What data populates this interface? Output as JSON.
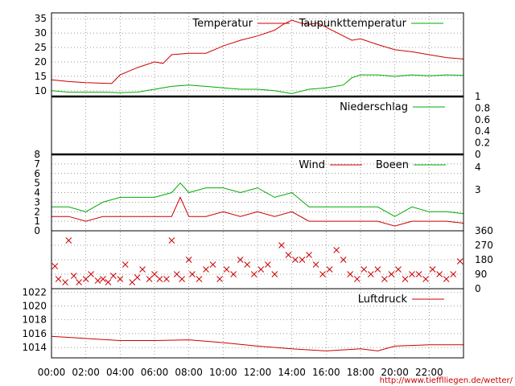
{
  "footer_url": "http://www.tiefflliegen.de/wetter/",
  "x_ticks": [
    "00:00",
    "02:00",
    "04:00",
    "06:00",
    "08:00",
    "10:00",
    "12:00",
    "14:00",
    "16:00",
    "18:00",
    "20:00",
    "22:00"
  ],
  "colors": {
    "red": "#cc0000",
    "green": "#00aa00",
    "grid": "#777777"
  },
  "chart_data": [
    {
      "type": "line",
      "panel": "temperature",
      "ylim": [
        8,
        37
      ],
      "yticks": [
        "10",
        "15",
        "20",
        "25",
        "30",
        "35"
      ],
      "grid": true,
      "x_unit": "hour",
      "series": [
        {
          "name": "Temperatur",
          "color": "#cc0000",
          "x": [
            0,
            1,
            2,
            3,
            3.5,
            4,
            5,
            6,
            6.5,
            7,
            8,
            9,
            10,
            11,
            12,
            13,
            13.5,
            14,
            14.5,
            15,
            15.5,
            16,
            17,
            17.5,
            18,
            19,
            20,
            21,
            22,
            23,
            24
          ],
          "y": [
            13.8,
            13.2,
            12.8,
            12.6,
            12.5,
            15.5,
            18,
            20,
            19.5,
            22.5,
            23,
            23,
            25.5,
            27.5,
            29,
            31,
            33,
            34.5,
            33.5,
            33,
            33.5,
            32,
            29,
            27.5,
            28,
            26,
            24.2,
            23.5,
            22.5,
            21.5,
            21
          ]
        },
        {
          "name": "Taupunkttemperatur",
          "color": "#00aa00",
          "x": [
            0,
            1,
            2,
            3,
            4,
            5,
            6,
            7,
            8,
            9,
            10,
            11,
            12,
            13,
            13.5,
            14,
            15,
            16,
            17,
            17.5,
            18,
            19,
            20,
            21,
            22,
            23,
            24
          ],
          "y": [
            10,
            9.5,
            9.5,
            9.5,
            9.3,
            9.5,
            10.5,
            11.5,
            12,
            11.5,
            11,
            10.5,
            10.5,
            10,
            9.5,
            9,
            10.5,
            11,
            12,
            14.5,
            15.5,
            15.5,
            15,
            15.5,
            15.2,
            15.5,
            15.3
          ]
        }
      ]
    },
    {
      "type": "line",
      "panel": "precipitation",
      "ylim": [
        0,
        1
      ],
      "yticks_right": [
        "0",
        "0.2",
        "0.4",
        "0.6",
        "0.8",
        "1"
      ],
      "series": [
        {
          "name": "Niederschlag",
          "color": "#00aa00",
          "x": [
            0,
            24
          ],
          "y": [
            0,
            0
          ]
        }
      ]
    },
    {
      "type": "line",
      "panel": "wind",
      "ylim": [
        0,
        8
      ],
      "yticks": [
        "0",
        "1",
        "2",
        "3",
        "4",
        "5",
        "6",
        "7",
        "8"
      ],
      "yticks_right": [
        "3",
        "4"
      ],
      "grid": true,
      "series": [
        {
          "name": "Wind",
          "color": "#cc0000",
          "x": [
            0,
            1,
            2,
            3,
            4,
            5,
            6,
            7,
            7.5,
            8,
            9,
            10,
            11,
            12,
            13,
            14,
            15,
            16,
            17,
            18,
            19,
            20,
            21,
            22,
            23,
            24
          ],
          "y": [
            1.5,
            1.5,
            1,
            1.5,
            1.5,
            1.5,
            1.5,
            1.5,
            3.5,
            1.5,
            1.5,
            2,
            1.5,
            2,
            1.5,
            2,
            1,
            1,
            1,
            1,
            1,
            0.5,
            1,
            1,
            1,
            0.8
          ]
        },
        {
          "name": "Boeen",
          "color": "#00aa00",
          "x": [
            0,
            1,
            2,
            3,
            4,
            5,
            6,
            7,
            7.5,
            8,
            9,
            10,
            11,
            12,
            13,
            14,
            15,
            16,
            17,
            18,
            19,
            20,
            21,
            22,
            23,
            24
          ],
          "y": [
            2.5,
            2.5,
            2,
            3,
            3.5,
            3.5,
            3.5,
            4,
            5,
            4,
            4.5,
            4.5,
            4,
            4.5,
            3.5,
            4,
            2.5,
            2.5,
            2.5,
            2.5,
            2.5,
            1.5,
            2.5,
            2,
            2,
            1.8
          ]
        }
      ]
    },
    {
      "type": "scatter",
      "panel": "wind_direction",
      "ylim": [
        0,
        360
      ],
      "yticks_right": [
        "0",
        "90",
        "180",
        "270",
        "360"
      ],
      "marker": "x",
      "color": "#cc0000",
      "x": [
        0.2,
        0.4,
        0.8,
        1,
        1.3,
        1.6,
        2,
        2.3,
        2.7,
        3,
        3.3,
        3.6,
        4,
        4.3,
        4.7,
        5,
        5.3,
        5.7,
        6,
        6.3,
        6.7,
        7,
        7.3,
        7.6,
        8,
        8.2,
        8.6,
        9,
        9.4,
        9.8,
        10.2,
        10.6,
        11,
        11.4,
        11.8,
        12.2,
        12.6,
        13,
        13.4,
        13.8,
        14.2,
        14.6,
        15,
        15.4,
        15.8,
        16.2,
        16.6,
        17,
        17.4,
        17.8,
        18.2,
        18.6,
        19,
        19.4,
        19.8,
        20.2,
        20.6,
        21,
        21.4,
        21.8,
        22.2,
        22.6,
        23,
        23.4,
        23.8
      ],
      "y": [
        140,
        60,
        40,
        300,
        80,
        40,
        60,
        90,
        50,
        60,
        40,
        80,
        60,
        150,
        40,
        70,
        120,
        60,
        90,
        60,
        60,
        300,
        90,
        60,
        180,
        90,
        60,
        120,
        150,
        60,
        120,
        90,
        180,
        150,
        90,
        120,
        150,
        90,
        270,
        210,
        180,
        180,
        210,
        150,
        90,
        120,
        240,
        180,
        90,
        60,
        120,
        90,
        120,
        60,
        90,
        120,
        60,
        90,
        90,
        60,
        120,
        90,
        60,
        90,
        170
      ]
    },
    {
      "type": "line",
      "panel": "pressure",
      "ylim": [
        1012.5,
        1022.5
      ],
      "yticks": [
        "1014",
        "1016",
        "1018",
        "1020",
        "1022"
      ],
      "series": [
        {
          "name": "Luftdruck",
          "color": "#cc0000",
          "x": [
            0,
            2,
            4,
            6,
            8,
            10,
            12,
            14,
            16,
            18,
            19,
            20,
            22,
            24
          ],
          "y": [
            1015.6,
            1015.3,
            1015.0,
            1015.0,
            1015.1,
            1014.7,
            1014.2,
            1013.8,
            1013.5,
            1013.8,
            1013.5,
            1014.2,
            1014.4,
            1014.4
          ]
        }
      ]
    }
  ]
}
